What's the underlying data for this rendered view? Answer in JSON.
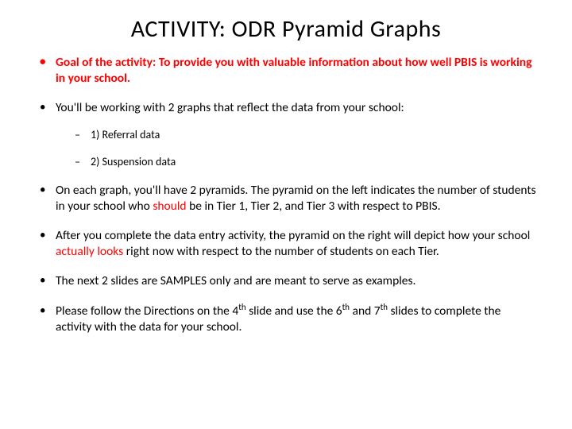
{
  "title": "ACTIVITY:  ODR Pyramid Graphs",
  "bullets": {
    "goal_prefix": "Goal of the activity:  ",
    "goal_text": "To provide you with valuable information about how well PBIS is working in your school.",
    "b2": "You'll be working with 2 graphs that reflect the data from your school:",
    "b2_sub1": "1) Referral data",
    "b2_sub2": "2) Suspension data",
    "b3_pre": "On each graph, you'll have 2 pyramids.  The pyramid on the left indicates the number of students in your school who ",
    "b3_red": "should",
    "b3_post": " be in Tier 1, Tier 2, and Tier 3 with respect to PBIS.",
    "b4_pre": "After you complete the data entry activity, the pyramid on the right will depict how your school ",
    "b4_red": "actually looks",
    "b4_post": " right now with respect to the number of students on each Tier.",
    "b5": "The next 2 slides are SAMPLES only and are meant to serve as examples.",
    "b6_p1": "Please follow the Directions on the 4",
    "b6_p2": " slide and use the 6",
    "b6_p3": " and 7",
    "b6_p4": " slides to complete the activity with the data for your school.",
    "sup_th": "th"
  },
  "colors": {
    "red": "#ff0000",
    "text": "#000000",
    "background": "#ffffff"
  },
  "typography": {
    "title_fontsize": 30,
    "body_fontsize": 15.5,
    "sub_fontsize": 14,
    "font_family": "Calibri"
  }
}
